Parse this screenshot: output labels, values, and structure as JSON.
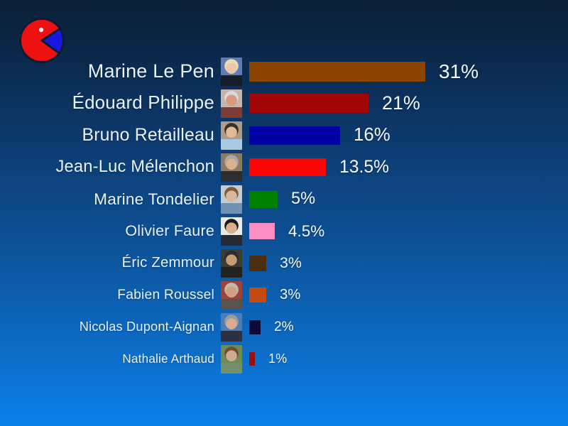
{
  "page": {
    "background_top_color": "#0a1f36",
    "background_bottom_color": "#0a80ea"
  },
  "logo": {
    "semantic": "pie-chart-pacman-logo",
    "body_color": "#ee1111",
    "wedge_color": "#1a17dd",
    "outline_color": "#0b1c33",
    "dot_color": "#ffffff"
  },
  "chart_data": {
    "type": "bar",
    "orientation": "horizontal",
    "title": "",
    "unit": "%",
    "xlim": [
      0,
      31
    ],
    "grid": false,
    "legend": "none",
    "categories": [
      "Marine Le Pen",
      "Édouard Philippe",
      "Bruno Retailleau",
      "Jean-Luc Mélenchon",
      "Marine Tondelier",
      "Olivier Faure",
      "Éric Zemmour",
      "Fabien Roussel",
      "Nicolas Dupont-Aignan",
      "Nathalie Arthaud"
    ],
    "values": [
      31,
      21,
      16,
      13.5,
      5,
      4.5,
      3,
      3,
      2,
      1
    ],
    "value_labels": [
      "31%",
      "21%",
      "16%",
      "13.5%",
      "5%",
      "4.5%",
      "3%",
      "3%",
      "2%",
      "1%"
    ],
    "bar_colors": [
      "#8b4500",
      "#a00606",
      "#0000a6",
      "#fb0606",
      "#008000",
      "#fb8ec0",
      "#4e2e10",
      "#c34a10",
      "#0d0a38",
      "#9c0f10"
    ],
    "photos": [
      {
        "name": "marine-le-pen-photo",
        "bg": "#5d7cb5",
        "hair": "#e9dcae",
        "skin": "#ecc6ab",
        "suit": "#151c2c"
      },
      {
        "name": "edouard-philippe-photo",
        "bg": "#c3b4ac",
        "hair": "#d9d9d9",
        "skin": "#d79a80",
        "suit": "#7e3b38"
      },
      {
        "name": "bruno-retailleau-photo",
        "bg": "#ab9d89",
        "hair": "#39302a",
        "skin": "#e2ba98",
        "suit": "#a9c8e2"
      },
      {
        "name": "jean-luc-melenchon-photo",
        "bg": "#8a7a66",
        "hair": "#a7a7a7",
        "skin": "#d8b18e",
        "suit": "#2c2c31"
      },
      {
        "name": "marine-tondelier-photo",
        "bg": "#c4cacd",
        "hair": "#7c5c3e",
        "skin": "#d9b69c",
        "suit": "#6f92b5"
      },
      {
        "name": "olivier-faure-photo",
        "bg": "#e9e9e9",
        "hair": "#1e1818",
        "skin": "#d9af90",
        "suit": "#272a33"
      },
      {
        "name": "eric-zemmour-photo",
        "bg": "#3c3c30",
        "hair": "#2d2d2d",
        "skin": "#c79a79",
        "suit": "#22221e"
      },
      {
        "name": "fabien-roussel-photo",
        "bg": "#9b443c",
        "hair": "#c2b9a8",
        "skin": "#d2a083",
        "suit": "#5a524e"
      },
      {
        "name": "nicolas-dupont-aignan-photo",
        "bg": "#4c7cba",
        "hair": "#979d9d",
        "skin": "#d9ab90",
        "suit": "#2a3244"
      },
      {
        "name": "nathalie-arthaud-photo",
        "bg": "#6d8c53",
        "hair": "#6e4e33",
        "skin": "#d2aa90",
        "suit": "#74906a"
      }
    ]
  }
}
